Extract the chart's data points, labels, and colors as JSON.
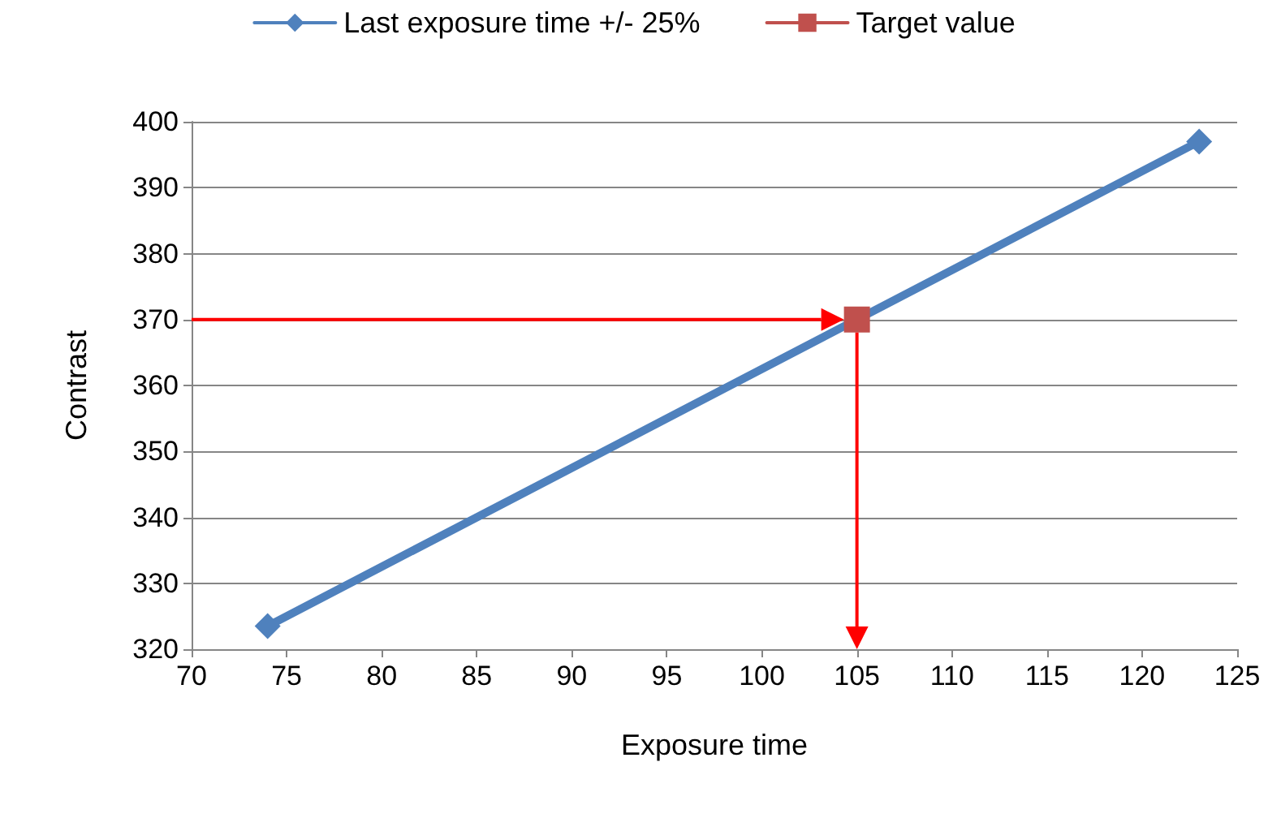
{
  "chart_data": {
    "type": "line",
    "xlabel": "Exposure time",
    "ylabel": "Contrast",
    "series": [
      {
        "name": "Last exposure time +/- 25%",
        "color": "#4f81bd",
        "x": [
          74,
          123
        ],
        "values": [
          323.5,
          397
        ],
        "marker": "diamond"
      },
      {
        "name": "Target value",
        "color": "#c0504d",
        "x": [
          105
        ],
        "values": [
          370
        ],
        "marker": "square"
      }
    ],
    "xlim": [
      70,
      125
    ],
    "xticks": [
      70,
      75,
      80,
      85,
      90,
      95,
      100,
      105,
      110,
      115,
      120,
      125
    ],
    "ylim": [
      320,
      400
    ],
    "yticks": [
      320,
      330,
      340,
      350,
      360,
      370,
      380,
      390,
      400
    ],
    "grid": "y",
    "legend": "top"
  }
}
